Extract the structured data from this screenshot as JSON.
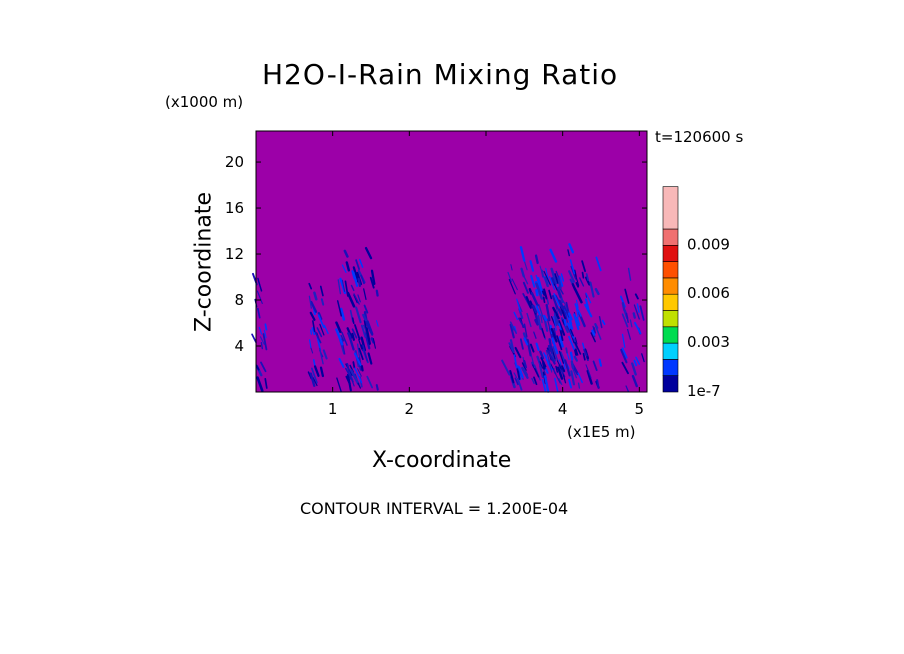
{
  "chart_data": {
    "type": "heatmap",
    "title": "H2O-I-Rain Mixing Ratio",
    "xlabel": "X-coordinate",
    "ylabel": "Z-coordinate",
    "x_unit_label": "(x1E5 m)",
    "y_unit_label": "(x1000 m)",
    "time_label": "t=120600 s",
    "footer": "CONTOUR INTERVAL = 1.200E-04",
    "xlim": [
      0,
      5.1
    ],
    "ylim": [
      0,
      22.7
    ],
    "x_ticks": [
      1,
      2,
      3,
      4,
      5
    ],
    "y_ticks": [
      4,
      8,
      12,
      16,
      20
    ],
    "background_value_color": "#9c00a8",
    "colorbar": {
      "colors": [
        "#00009c",
        "#0038ff",
        "#00d0ff",
        "#00dc50",
        "#c0e000",
        "#ffc800",
        "#ff8c00",
        "#ff5000",
        "#e01010",
        "#f07070",
        "#f8b8b8"
      ],
      "labels": [
        {
          "value": 1e-07,
          "text": "1e-7"
        },
        {
          "value": 0.003,
          "text": "0.003"
        },
        {
          "value": 0.006,
          "text": "0.006"
        },
        {
          "value": 0.009,
          "text": "0.009"
        }
      ]
    },
    "rain_regions": [
      {
        "x": [
          0.0,
          0.15
        ],
        "z": [
          0,
          11.5
        ],
        "density": 0.5
      },
      {
        "x": [
          0.7,
          0.95
        ],
        "z": [
          0,
          10.5
        ],
        "density": 0.45
      },
      {
        "x": [
          1.1,
          1.6
        ],
        "z": [
          0,
          12.5
        ],
        "density": 0.7
      },
      {
        "x": [
          3.3,
          4.55
        ],
        "z": [
          0,
          12.5
        ],
        "density": 0.75
      },
      {
        "x": [
          4.8,
          5.1
        ],
        "z": [
          0,
          11.5
        ],
        "density": 0.35
      }
    ]
  }
}
